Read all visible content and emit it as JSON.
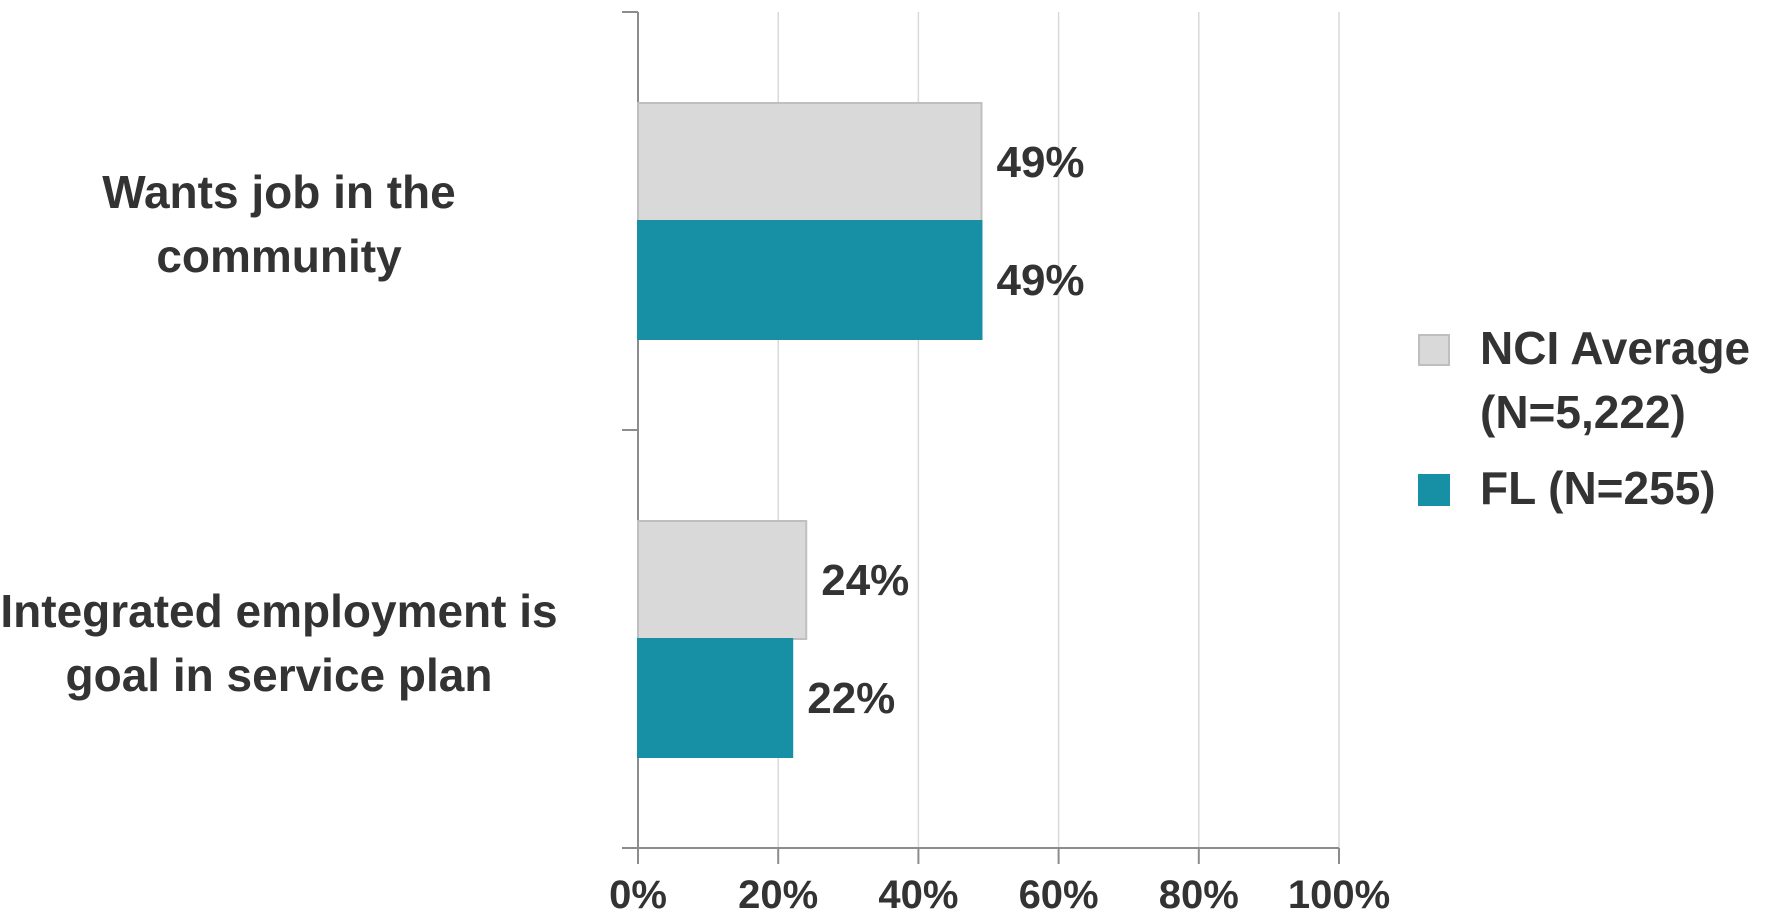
{
  "chart_data": {
    "type": "bar",
    "orientation": "horizontal",
    "categories": [
      "Wants job in the community",
      "Integrated employment is goal in service plan"
    ],
    "series": [
      {
        "name": "NCI Average (N=5,222)",
        "values": [
          49,
          24
        ],
        "labels": [
          "49%",
          "24%"
        ],
        "color": "#d9d9d9",
        "border": "#bfbfbf"
      },
      {
        "name": "FL (N=255)",
        "values": [
          49,
          22
        ],
        "labels": [
          "49%",
          "22%"
        ],
        "color": "#178fa4",
        "border": "#178fa4"
      }
    ],
    "xlim": [
      0,
      100
    ],
    "xticks": [
      "0%",
      "20%",
      "40%",
      "60%",
      "80%",
      "100%"
    ],
    "xtick_values": [
      0,
      20,
      40,
      60,
      80,
      100
    ],
    "grid": true,
    "legend_position": "right",
    "title": "",
    "xlabel": "",
    "ylabel": ""
  },
  "category_lines": {
    "cat0": [
      "Wants job in the",
      "community"
    ],
    "cat1": [
      "Integrated employment is",
      "goal in service plan"
    ]
  },
  "legend": {
    "item0": [
      "NCI Average",
      "(N=5,222)"
    ],
    "item1": [
      "FL (N=255)"
    ]
  }
}
